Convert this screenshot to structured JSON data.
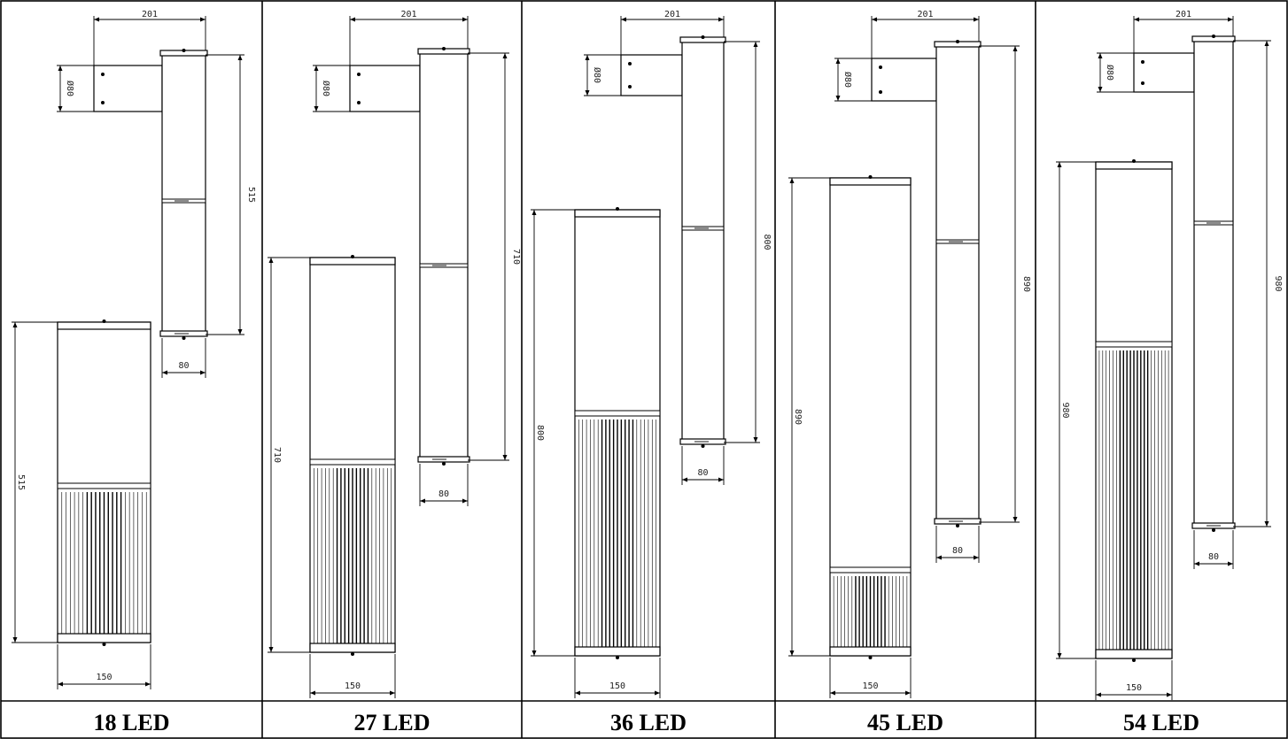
{
  "panels": [
    {
      "label": "18 LED",
      "dims": {
        "arm": "201",
        "bracket": "Ø80",
        "tall_height": "515",
        "tall_width": "80",
        "short_height": "515",
        "short_width": "150"
      }
    },
    {
      "label": "27 LED",
      "dims": {
        "arm": "201",
        "bracket": "Ø80",
        "tall_height": "710",
        "tall_width": "80",
        "short_height": "710",
        "short_width": "150"
      }
    },
    {
      "label": "36 LED",
      "dims": {
        "arm": "201",
        "bracket": "Ø80",
        "tall_height": "800",
        "tall_width": "80",
        "short_height": "800",
        "short_width": "150"
      }
    },
    {
      "label": "45 LED",
      "dims": {
        "arm": "201",
        "bracket": "Ø80",
        "tall_height": "890",
        "tall_width": "80",
        "short_height": "890",
        "short_width": "150"
      }
    },
    {
      "label": "54 LED",
      "dims": {
        "arm": "201",
        "bracket": "Ø80",
        "tall_height": "980",
        "tall_width": "80",
        "short_height": "980",
        "short_width": "150"
      }
    }
  ]
}
